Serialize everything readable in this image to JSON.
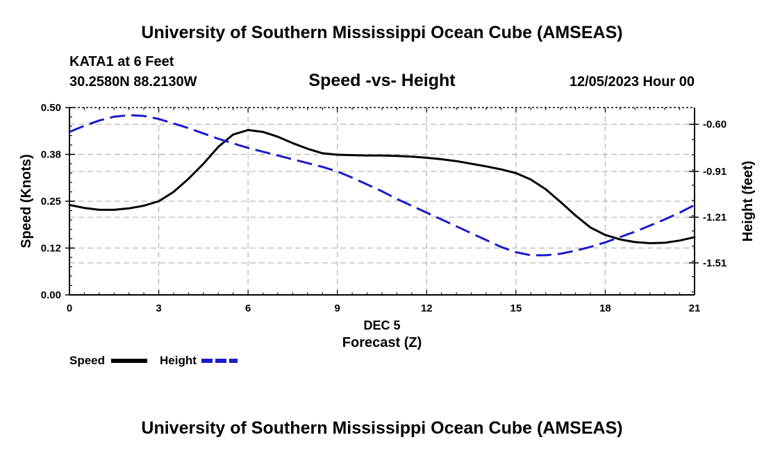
{
  "header": {
    "title": "University of Southern Mississippi Ocean Cube (AMSEAS)",
    "station": "KATA1 at 6 Feet",
    "coords": "30.2580N  88.2130W",
    "datetime": "12/05/2023 Hour 00",
    "footer_title": "University of Southern Mississippi Ocean Cube (AMSEAS)"
  },
  "colors": {
    "speed": "#000000",
    "height": "#1a1acc",
    "grid": "#b4b4b4"
  },
  "chart_data": {
    "type": "line",
    "title": "Speed -vs- Height",
    "xlabel": "Forecast (Z)",
    "xlabel_date": "DEC 5",
    "ylabel_left": "Speed (Knots)",
    "ylabel_right": "Height (feet)",
    "xlim": [
      0,
      21
    ],
    "ylim_left": [
      0,
      0.5
    ],
    "ylim_right": [
      -1.72,
      -0.49
    ],
    "x_ticks": [
      0,
      3,
      6,
      9,
      12,
      15,
      18,
      21
    ],
    "x_tick_labels": [
      "0",
      "3",
      "6",
      "9",
      "12",
      "15",
      "18",
      "21"
    ],
    "y_left_ticks": [
      0.0,
      0.125,
      0.25,
      0.375,
      0.5
    ],
    "y_left_tick_labels": [
      "0.00",
      "0.12",
      "0.25",
      "0.38",
      "0.50"
    ],
    "y_right_ticks": [
      -0.6,
      -0.91,
      -1.21,
      -1.51
    ],
    "y_right_tick_labels": [
      "-0.60",
      "-0.91",
      "-1.21",
      "-1.51"
    ],
    "grid": true,
    "legend_position": "bottom-left",
    "series": [
      {
        "name": "Speed",
        "axis": "left",
        "style": "solid",
        "x": [
          0,
          0.5,
          1,
          1.5,
          2,
          2.5,
          3,
          3.5,
          4,
          4.5,
          5,
          5.5,
          6,
          6.5,
          7,
          7.5,
          8,
          8.5,
          9,
          9.5,
          10,
          10.5,
          11,
          11.5,
          12,
          12.5,
          13,
          13.5,
          14,
          14.5,
          15,
          15.5,
          16,
          16.5,
          17,
          17.5,
          18,
          18.5,
          19,
          19.5,
          20,
          20.5,
          21
        ],
        "values": [
          0.24,
          0.232,
          0.227,
          0.227,
          0.231,
          0.238,
          0.25,
          0.275,
          0.31,
          0.35,
          0.395,
          0.428,
          0.44,
          0.435,
          0.422,
          0.405,
          0.39,
          0.378,
          0.374,
          0.373,
          0.372,
          0.372,
          0.371,
          0.369,
          0.366,
          0.362,
          0.357,
          0.35,
          0.343,
          0.335,
          0.325,
          0.308,
          0.282,
          0.248,
          0.212,
          0.18,
          0.16,
          0.148,
          0.141,
          0.138,
          0.139,
          0.145,
          0.154
        ]
      },
      {
        "name": "Height",
        "axis": "right",
        "style": "dashed",
        "x": [
          0,
          0.5,
          1,
          1.5,
          2,
          2.5,
          3,
          3.5,
          4,
          4.5,
          5,
          5.5,
          6,
          6.5,
          7,
          7.5,
          8,
          8.5,
          9,
          9.5,
          10,
          10.5,
          11,
          11.5,
          12,
          12.5,
          13,
          13.5,
          14,
          14.5,
          15,
          15.5,
          16,
          16.5,
          17,
          17.5,
          18,
          18.5,
          19,
          19.5,
          20,
          20.5,
          21
        ],
        "values": [
          -0.65,
          -0.61,
          -0.575,
          -0.55,
          -0.54,
          -0.545,
          -0.565,
          -0.595,
          -0.625,
          -0.66,
          -0.695,
          -0.725,
          -0.755,
          -0.78,
          -0.805,
          -0.83,
          -0.855,
          -0.88,
          -0.91,
          -0.95,
          -0.995,
          -1.04,
          -1.09,
          -1.135,
          -1.18,
          -1.225,
          -1.27,
          -1.315,
          -1.36,
          -1.405,
          -1.44,
          -1.46,
          -1.46,
          -1.45,
          -1.43,
          -1.405,
          -1.375,
          -1.34,
          -1.305,
          -1.265,
          -1.225,
          -1.18,
          -1.13
        ]
      }
    ]
  }
}
